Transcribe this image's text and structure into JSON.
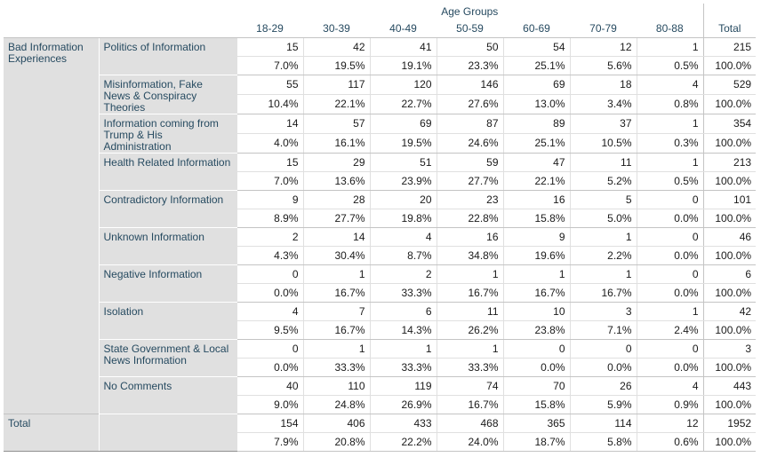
{
  "header": {
    "age_groups_label": "Age Groups",
    "columns": [
      "18-29",
      "30-39",
      "40-49",
      "50-59",
      "60-69",
      "70-79",
      "80-88"
    ],
    "total_label": "Total"
  },
  "groups": [
    {
      "label": "Bad Information Experiences",
      "rows": [
        {
          "label": "Politics of Information",
          "counts": [
            "15",
            "42",
            "41",
            "50",
            "54",
            "12",
            "1",
            "215"
          ],
          "percents": [
            "7.0%",
            "19.5%",
            "19.1%",
            "23.3%",
            "25.1%",
            "5.6%",
            "0.5%",
            "100.0%"
          ]
        },
        {
          "label": "Misinformation, Fake News & Conspiracy Theories",
          "counts": [
            "55",
            "117",
            "120",
            "146",
            "69",
            "18",
            "4",
            "529"
          ],
          "percents": [
            "10.4%",
            "22.1%",
            "22.7%",
            "27.6%",
            "13.0%",
            "3.4%",
            "0.8%",
            "100.0%"
          ]
        },
        {
          "label": "Information coming from Trump & His Administration",
          "counts": [
            "14",
            "57",
            "69",
            "87",
            "89",
            "37",
            "1",
            "354"
          ],
          "percents": [
            "4.0%",
            "16.1%",
            "19.5%",
            "24.6%",
            "25.1%",
            "10.5%",
            "0.3%",
            "100.0%"
          ]
        },
        {
          "label": "Health Related Information",
          "counts": [
            "15",
            "29",
            "51",
            "59",
            "47",
            "11",
            "1",
            "213"
          ],
          "percents": [
            "7.0%",
            "13.6%",
            "23.9%",
            "27.7%",
            "22.1%",
            "5.2%",
            "0.5%",
            "100.0%"
          ]
        },
        {
          "label": "Contradictory Information",
          "counts": [
            "9",
            "28",
            "20",
            "23",
            "16",
            "5",
            "0",
            "101"
          ],
          "percents": [
            "8.9%",
            "27.7%",
            "19.8%",
            "22.8%",
            "15.8%",
            "5.0%",
            "0.0%",
            "100.0%"
          ]
        },
        {
          "label": "Unknown Information",
          "counts": [
            "2",
            "14",
            "4",
            "16",
            "9",
            "1",
            "0",
            "46"
          ],
          "percents": [
            "4.3%",
            "30.4%",
            "8.7%",
            "34.8%",
            "19.6%",
            "2.2%",
            "0.0%",
            "100.0%"
          ]
        },
        {
          "label": "Negative Information",
          "counts": [
            "0",
            "1",
            "2",
            "1",
            "1",
            "1",
            "0",
            "6"
          ],
          "percents": [
            "0.0%",
            "16.7%",
            "33.3%",
            "16.7%",
            "16.7%",
            "16.7%",
            "0.0%",
            "100.0%"
          ]
        },
        {
          "label": "Isolation",
          "counts": [
            "4",
            "7",
            "6",
            "11",
            "10",
            "3",
            "1",
            "42"
          ],
          "percents": [
            "9.5%",
            "16.7%",
            "14.3%",
            "26.2%",
            "23.8%",
            "7.1%",
            "2.4%",
            "100.0%"
          ]
        },
        {
          "label": "State Government & Local News Information",
          "counts": [
            "0",
            "1",
            "1",
            "1",
            "0",
            "0",
            "0",
            "3"
          ],
          "percents": [
            "0.0%",
            "33.3%",
            "33.3%",
            "33.3%",
            "0.0%",
            "0.0%",
            "0.0%",
            "100.0%"
          ]
        },
        {
          "label": "No Comments",
          "counts": [
            "40",
            "110",
            "119",
            "74",
            "70",
            "26",
            "4",
            "443"
          ],
          "percents": [
            "9.0%",
            "24.8%",
            "26.9%",
            "16.7%",
            "15.8%",
            "5.9%",
            "0.9%",
            "100.0%"
          ]
        }
      ]
    }
  ],
  "total_row": {
    "label": "Total",
    "counts": [
      "154",
      "406",
      "433",
      "468",
      "365",
      "114",
      "12",
      "1952"
    ],
    "percents": [
      "7.9%",
      "20.8%",
      "22.2%",
      "24.0%",
      "18.7%",
      "5.8%",
      "0.6%",
      "100.0%"
    ]
  },
  "colors": {
    "label_bg": "#e0e0e0",
    "label_text": "#264a60",
    "border": "#c4c4c4"
  }
}
